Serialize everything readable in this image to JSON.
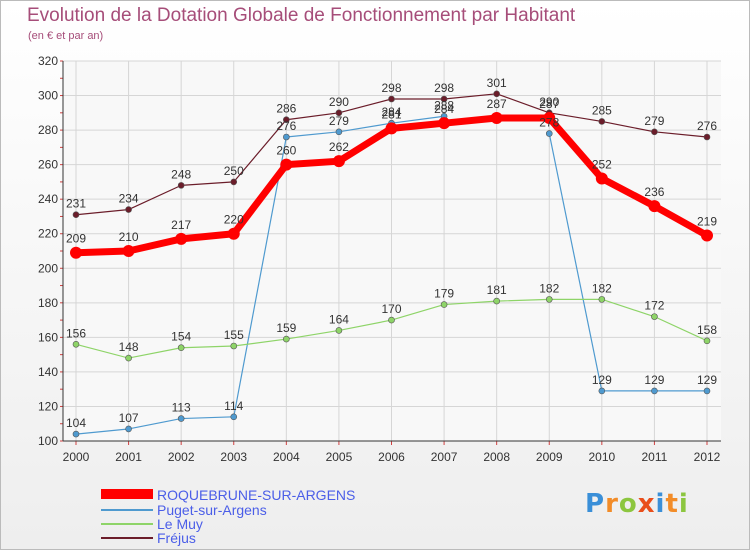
{
  "chart_data": {
    "type": "line",
    "title": "Evolution de la Dotation Globale de Fonctionnement par Habitant",
    "subtitle": "(en € et par an)",
    "x": [
      "2000",
      "2001",
      "2002",
      "2003",
      "2004",
      "2005",
      "2006",
      "2007",
      "2008",
      "2009",
      "2010",
      "2011",
      "2012"
    ],
    "ylim": [
      100,
      320
    ],
    "yticks": [
      "100",
      "120",
      "140",
      "160",
      "180",
      "200",
      "220",
      "240",
      "260",
      "280",
      "300",
      "320"
    ],
    "grid": true,
    "legend_position": "bottom-left",
    "series": [
      {
        "name": "ROQUEBRUNE-SUR-ARGENS",
        "color": "#ff0000",
        "highlight": true,
        "values": [
          209,
          210,
          217,
          220,
          260,
          262,
          281,
          284,
          287,
          287,
          252,
          236,
          219
        ],
        "labels": [
          "209",
          "210",
          "217",
          "220",
          "260",
          "262",
          "281",
          "284",
          "287",
          "287",
          "252",
          "236",
          "219"
        ]
      },
      {
        "name": "Puget-sur-Argens",
        "color": "#4f9acf",
        "values": [
          104,
          107,
          113,
          114,
          276,
          279,
          284,
          288,
          null,
          278,
          129,
          129,
          129
        ],
        "labels": [
          "104",
          "107",
          "113",
          "114",
          "276",
          "279",
          "284",
          "288",
          "",
          "278",
          "129",
          "129",
          "129"
        ]
      },
      {
        "name": "Le Muy",
        "color": "#8ed468",
        "values": [
          156,
          148,
          154,
          155,
          159,
          164,
          170,
          179,
          181,
          182,
          182,
          172,
          158
        ],
        "labels": [
          "156",
          "148",
          "154",
          "155",
          "159",
          "164",
          "170",
          "179",
          "181",
          "182",
          "182",
          "172",
          "158"
        ]
      },
      {
        "name": "Fréjus",
        "color": "#6b1d2a",
        "values": [
          231,
          234,
          248,
          250,
          286,
          290,
          298,
          298,
          301,
          290,
          285,
          279,
          276
        ],
        "labels": [
          "231",
          "234",
          "248",
          "250",
          "286",
          "290",
          "298",
          "298",
          "301",
          "290",
          "285",
          "279",
          "276"
        ]
      }
    ]
  },
  "legend": {
    "items": [
      {
        "label": "ROQUEBRUNE-SUR-ARGENS",
        "color": "#ff0000"
      },
      {
        "label": "Puget-sur-Argens",
        "color": "#4f9acf"
      },
      {
        "label": "Le Muy",
        "color": "#8ed468"
      },
      {
        "label": "Fréjus",
        "color": "#6b1d2a"
      }
    ]
  },
  "logo": {
    "letters": [
      "P",
      "r",
      "o",
      "x",
      "i",
      "t",
      "i"
    ],
    "colors": [
      "#3a8fd8",
      "#f28c28",
      "#8cc63f",
      "#e94e1b",
      "#3a8fd8",
      "#f28c28",
      "#8cc63f"
    ]
  }
}
